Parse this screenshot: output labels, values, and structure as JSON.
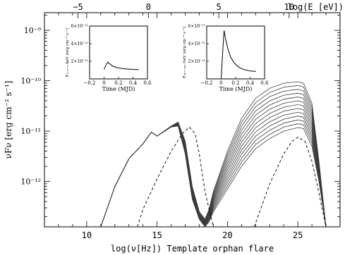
{
  "chart_data": [
    {
      "type": "line",
      "role": "main",
      "xlabel": "log(ν[Hz]) Template orphan flare",
      "ylabel": "νFν [erg cm⁻² s⁻¹]",
      "top_xlabel": "log(E [eV])",
      "xlim": [
        7,
        28
      ],
      "ylim": [
        -12.9,
        -8.65
      ],
      "y_log_scale": true,
      "x_ticks": [
        10,
        15,
        20,
        25
      ],
      "y_ticks": [
        -12,
        -11,
        -10,
        -9
      ],
      "y_tick_labels": [
        "10⁻¹²",
        "10⁻¹¹",
        "10⁻¹⁰",
        "10⁻⁹"
      ],
      "top_ticks": [
        -5,
        0,
        5,
        10
      ],
      "top_tick_labels": [
        "−5",
        "0",
        "5",
        "10"
      ],
      "grid": false,
      "series": [
        {
          "style": "solid",
          "x": [
            11.0,
            12.0,
            13.0,
            14.0,
            14.6,
            15.0,
            16.0,
            16.5,
            17.0,
            17.5,
            18.0,
            18.4,
            18.7,
            19.0,
            20.0,
            21.0,
            22.0,
            23.0,
            24.0,
            25.0,
            25.4,
            26.0,
            26.5,
            27.0
          ],
          "y_min": [
            -12.9,
            -12.1,
            -11.55,
            -11.25,
            -11.02,
            -11.1,
            -10.92,
            -10.9,
            -11.45,
            -12.35,
            -12.75,
            -12.9,
            -12.8,
            -12.6,
            -12.15,
            -11.7,
            -11.35,
            -11.15,
            -11.0,
            -10.93,
            -10.95,
            -11.3,
            -12.0,
            -12.9
          ],
          "y_max": [
            -12.9,
            -12.1,
            -11.55,
            -11.25,
            -11.02,
            -11.1,
            -10.9,
            -10.82,
            -11.2,
            -12.1,
            -12.6,
            -12.75,
            -12.55,
            -12.2,
            -11.4,
            -10.75,
            -10.35,
            -10.15,
            -10.05,
            -10.02,
            -10.05,
            -10.45,
            -11.6,
            -12.9
          ],
          "count": 13
        },
        {
          "style": "dashed",
          "x": [
            13.6,
            14.0,
            15.0,
            16.0,
            16.8,
            17.3,
            17.7,
            18.0,
            18.4,
            19.0,
            20.0,
            21.0,
            21.9,
            23.0,
            24.0,
            24.6,
            25.0,
            25.5,
            26.0,
            26.4,
            27.0
          ],
          "y": [
            -12.9,
            -12.55,
            -11.95,
            -11.4,
            -11.05,
            -10.92,
            -11.05,
            -11.45,
            -12.2,
            -12.9,
            null,
            null,
            -12.9,
            -12.05,
            -11.45,
            -11.2,
            -11.12,
            -11.2,
            -11.6,
            -12.1,
            -12.9
          ]
        }
      ]
    },
    {
      "type": "line",
      "role": "inset-left",
      "ylabel": "F₀.₃−₃ keV (erg cm⁻² s⁻¹)",
      "xlabel": "Time (MJD)",
      "xlim": [
        -0.2,
        0.6
      ],
      "ylim": [
        0,
        6e-11
      ],
      "x_ticks": [
        -0.2,
        0,
        0.2,
        0.4,
        0.6
      ],
      "x_tick_labels": [
        "−0.2",
        "0",
        "0.2",
        "0.4",
        "0.6"
      ],
      "y_ticks": [
        2e-11,
        4e-11,
        6e-11
      ],
      "y_tick_labels": [
        "2×10⁻¹¹",
        "4×10⁻¹¹",
        "6×10⁻¹¹"
      ],
      "series": [
        {
          "x": [
            0.0,
            0.02,
            0.05,
            0.08,
            0.12,
            0.18,
            0.25,
            0.32,
            0.4,
            0.48
          ],
          "y": [
            1.1e-11,
            1.5e-11,
            1.9e-11,
            1.7e-11,
            1.45e-11,
            1.28e-11,
            1.18e-11,
            1.12e-11,
            1.08e-11,
            1.06e-11
          ]
        }
      ]
    },
    {
      "type": "line",
      "role": "inset-right",
      "ylabel": "F₅₀−₃₀₀ GeV (erg cm⁻² s⁻¹)",
      "xlabel": "Time (MJD)",
      "xlim": [
        -0.2,
        0.6
      ],
      "ylim": [
        0,
        6e-11
      ],
      "x_ticks": [
        -0.2,
        0,
        0.2,
        0.4,
        0.6
      ],
      "x_tick_labels": [
        "−0.2",
        "0",
        "0.2",
        "0.4",
        "0.6"
      ],
      "y_ticks": [
        2e-11,
        4e-11,
        6e-11
      ],
      "y_tick_labels": [
        "2×10⁻¹¹",
        "4×10⁻¹¹",
        "6×10⁻¹¹"
      ],
      "series": [
        {
          "x": [
            0.0,
            0.02,
            0.04,
            0.06,
            0.09,
            0.13,
            0.18,
            0.25,
            0.32,
            0.4,
            0.48
          ],
          "y": [
            1e-12,
            3e-11,
            5.5e-11,
            4.6e-11,
            3.5e-11,
            2.5e-11,
            1.8e-11,
            1.3e-11,
            1.05e-11,
            9e-12,
            8.5e-12
          ]
        }
      ]
    }
  ]
}
